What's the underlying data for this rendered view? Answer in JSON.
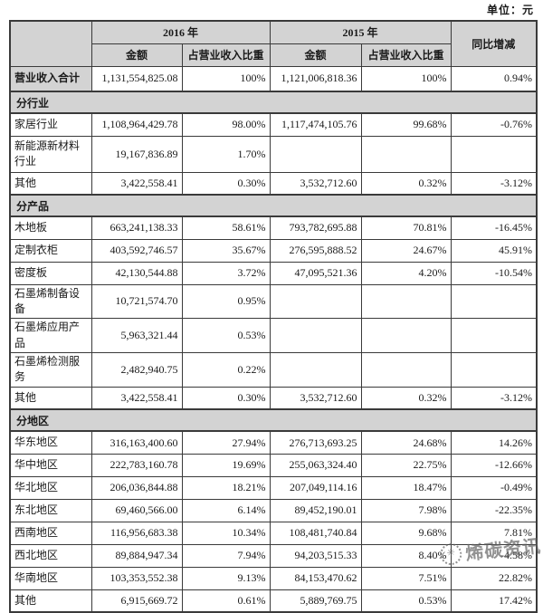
{
  "meta": {
    "unit_label": "单位：元"
  },
  "header": {
    "col_2016": "2016 年",
    "col_2015": "2015 年",
    "amount": "金额",
    "proportion": "占营业收入比重",
    "yoy": "同比增减"
  },
  "total_row": {
    "label": "营业收入合计",
    "cells": [
      "1,131,554,825.08",
      "100%",
      "1,121,006,818.36",
      "100%",
      "0.94%"
    ]
  },
  "sections": [
    {
      "title": "分行业",
      "rows": [
        {
          "label": "家居行业",
          "cells": [
            "1,108,964,429.78",
            "98.00%",
            "1,117,474,105.76",
            "99.68%",
            "-0.76%"
          ]
        },
        {
          "label": "新能源新材料行业",
          "cells": [
            "19,167,836.89",
            "1.70%",
            "",
            "",
            ""
          ]
        },
        {
          "label": "其他",
          "cells": [
            "3,422,558.41",
            "0.30%",
            "3,532,712.60",
            "0.32%",
            "-3.12%"
          ]
        }
      ]
    },
    {
      "title": "分产品",
      "rows": [
        {
          "label": "木地板",
          "cells": [
            "663,241,138.33",
            "58.61%",
            "793,782,695.88",
            "70.81%",
            "-16.45%"
          ]
        },
        {
          "label": "定制衣柜",
          "cells": [
            "403,592,746.57",
            "35.67%",
            "276,595,888.52",
            "24.67%",
            "45.91%"
          ]
        },
        {
          "label": "密度板",
          "cells": [
            "42,130,544.88",
            "3.72%",
            "47,095,521.36",
            "4.20%",
            "-10.54%"
          ]
        },
        {
          "label": "石墨烯制备设备",
          "cells": [
            "10,721,574.70",
            "0.95%",
            "",
            "",
            ""
          ]
        },
        {
          "label": "石墨烯应用产品",
          "cells": [
            "5,963,321.44",
            "0.53%",
            "",
            "",
            ""
          ]
        },
        {
          "label": "石墨烯检测服务",
          "cells": [
            "2,482,940.75",
            "0.22%",
            "",
            "",
            ""
          ]
        },
        {
          "label": "其他",
          "cells": [
            "3,422,558.41",
            "0.30%",
            "3,532,712.60",
            "0.32%",
            "-3.12%"
          ]
        }
      ]
    },
    {
      "title": "分地区",
      "rows": [
        {
          "label": "华东地区",
          "cells": [
            "316,163,400.60",
            "27.94%",
            "276,713,693.25",
            "24.68%",
            "14.26%"
          ]
        },
        {
          "label": "华中地区",
          "cells": [
            "222,783,160.78",
            "19.69%",
            "255,063,324.40",
            "22.75%",
            "-12.66%"
          ]
        },
        {
          "label": "华北地区",
          "cells": [
            "206,036,844.88",
            "18.21%",
            "207,049,114.16",
            "18.47%",
            "-0.49%"
          ]
        },
        {
          "label": "东北地区",
          "cells": [
            "69,460,566.00",
            "6.14%",
            "89,452,190.01",
            "7.98%",
            "-22.35%"
          ]
        },
        {
          "label": "西南地区",
          "cells": [
            "116,956,683.38",
            "10.34%",
            "108,481,740.84",
            "9.68%",
            "7.81%"
          ]
        },
        {
          "label": "西北地区",
          "cells": [
            "89,884,947.34",
            "7.94%",
            "94,203,515.33",
            "8.40%",
            "-4.58%"
          ]
        },
        {
          "label": "华南地区",
          "cells": [
            "103,353,552.38",
            "9.13%",
            "84,153,470.62",
            "7.51%",
            "22.82%"
          ]
        },
        {
          "label": "其他",
          "cells": [
            "6,915,669.72",
            "0.61%",
            "5,889,769.75",
            "0.53%",
            "17.42%"
          ]
        }
      ]
    }
  ],
  "watermark": {
    "text": "烯碳资讯",
    "logo_glyph": "✳"
  },
  "colors": {
    "header_bg": "#d3d3d3",
    "border": "#3a3a3a",
    "watermark_gray": "#5f5f5f"
  }
}
